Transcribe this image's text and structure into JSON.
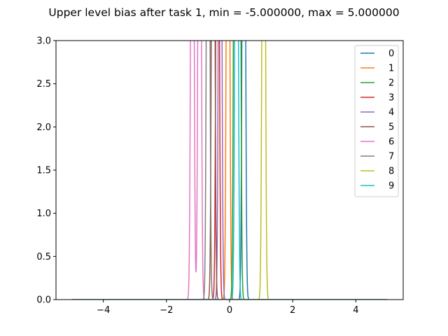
{
  "chart_data": {
    "type": "line",
    "title": "Upper level bias after task 1, min = -5.000000, max = 5.000000",
    "xlabel": "",
    "ylabel": "",
    "xlim": [
      -5.5,
      5.5
    ],
    "ylim": [
      0,
      3.0
    ],
    "xticks": [
      -4,
      -2,
      0,
      2,
      4
    ],
    "xtick_labels": [
      "−4",
      "−2",
      "0",
      "2",
      "4"
    ],
    "yticks": [
      0,
      0.5,
      1.0,
      1.5,
      2.0,
      2.5,
      3.0
    ],
    "ytick_labels": [
      "0.0",
      "0.5",
      "1.0",
      "1.5",
      "2.0",
      "2.5",
      "3.0"
    ],
    "x_range": [
      -5,
      5
    ],
    "grid": false,
    "legend_position": "top-right",
    "series": [
      {
        "name": "0",
        "color": "#1f77b4",
        "peaks": [
          {
            "mu": 0.45,
            "sigma": 0.04
          }
        ]
      },
      {
        "name": "1",
        "color": "#ff7f0e",
        "peaks": [
          {
            "mu": -0.05,
            "sigma": 0.04
          }
        ]
      },
      {
        "name": "2",
        "color": "#2ca02c",
        "peaks": [
          {
            "mu": 0.18,
            "sigma": 0.04
          },
          {
            "mu": 0.3,
            "sigma": 0.04
          }
        ]
      },
      {
        "name": "3",
        "color": "#d62728",
        "peaks": [
          {
            "mu": -0.38,
            "sigma": 0.04
          }
        ]
      },
      {
        "name": "4",
        "color": "#9467bd",
        "peaks": [
          {
            "mu": -0.3,
            "sigma": 0.04
          }
        ]
      },
      {
        "name": "5",
        "color": "#8c564b",
        "peaks": [
          {
            "mu": -0.52,
            "sigma": 0.04
          }
        ]
      },
      {
        "name": "6",
        "color": "#e377c2",
        "peaks": [
          {
            "mu": -1.18,
            "sigma": 0.04
          },
          {
            "mu": -0.95,
            "sigma": 0.04
          }
        ]
      },
      {
        "name": "7",
        "color": "#7f7f7f",
        "peaks": [
          {
            "mu": -0.68,
            "sigma": 0.04
          }
        ]
      },
      {
        "name": "8",
        "color": "#bcbd22",
        "peaks": [
          {
            "mu": 1.08,
            "sigma": 0.04
          }
        ]
      },
      {
        "name": "9",
        "color": "#17becf",
        "peaks": [
          {
            "mu": 0.22,
            "sigma": 0.04
          }
        ]
      }
    ]
  }
}
